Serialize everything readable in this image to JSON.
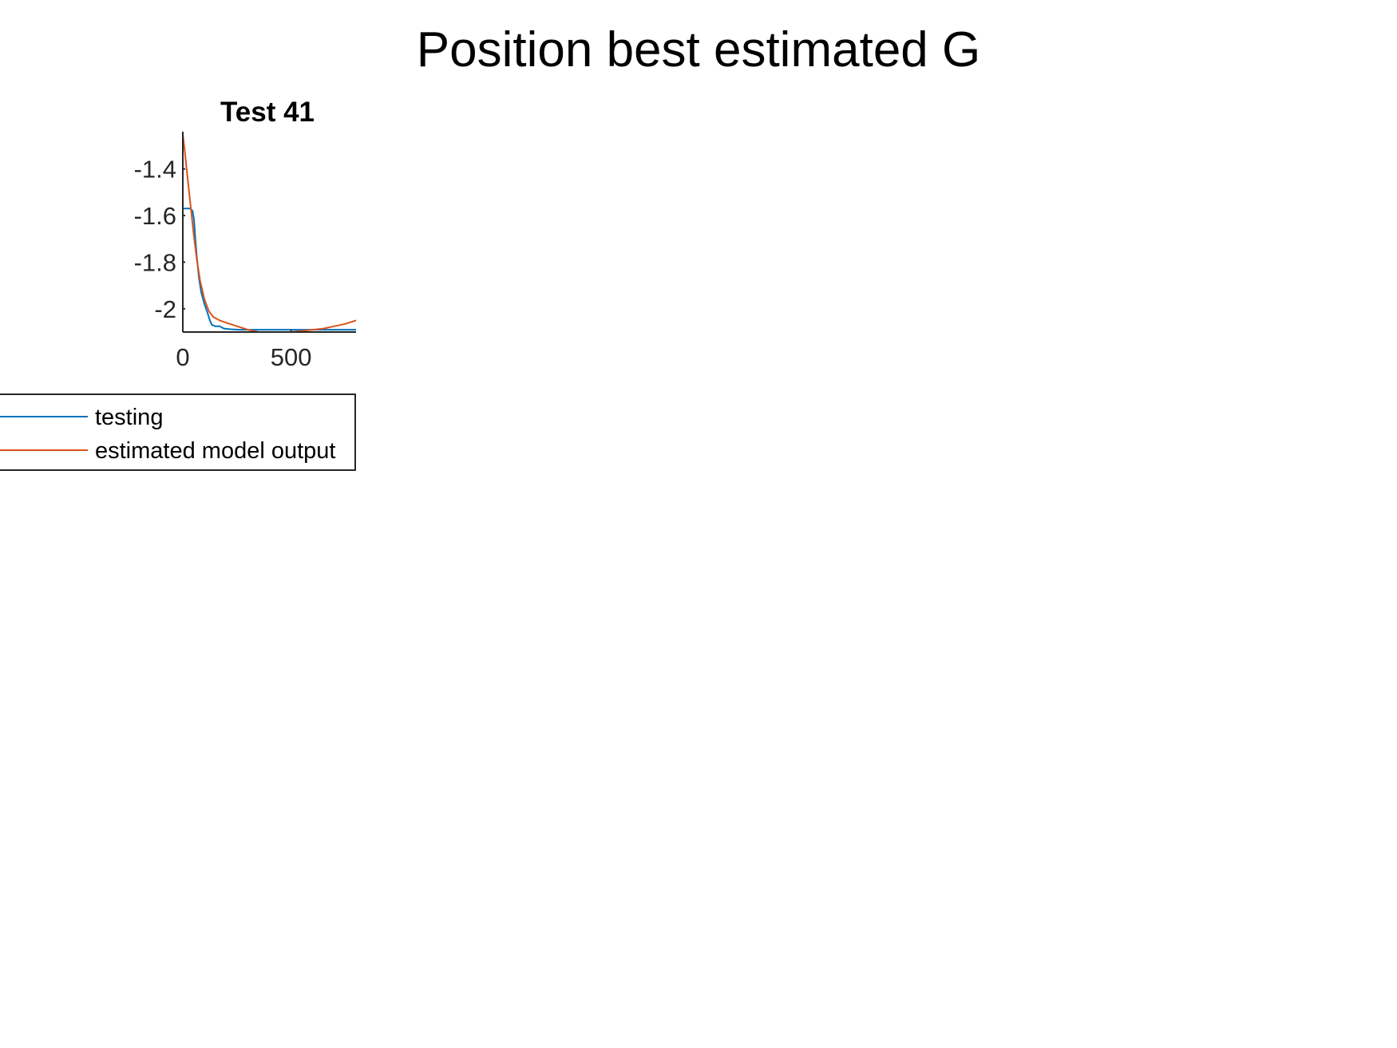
{
  "figure": {
    "suptitle": "Position best estimated G"
  },
  "chart_data": {
    "type": "line",
    "title": "Test 41",
    "xlabel": "",
    "ylabel": "",
    "xlim": [
      0,
      800
    ],
    "ylim": [
      -2.1,
      -1.24
    ],
    "grid": false,
    "legend_position": "below-left",
    "x_ticks": [
      {
        "value": 0,
        "label": "0"
      },
      {
        "value": 500,
        "label": "500"
      }
    ],
    "y_ticks": [
      {
        "value": -1.4,
        "label": "-1.4"
      },
      {
        "value": -1.6,
        "label": "-1.6"
      },
      {
        "value": -1.8,
        "label": "-1.8"
      },
      {
        "value": -2.0,
        "label": "-2"
      }
    ],
    "series": [
      {
        "name": "testing",
        "color": "#0072BD",
        "x": [
          0,
          20,
          35,
          45,
          52,
          58,
          65,
          75,
          85,
          100,
          115,
          125,
          135,
          150,
          170,
          190,
          220,
          260,
          300,
          400,
          500,
          600,
          700,
          800
        ],
        "y": [
          -1.57,
          -1.57,
          -1.57,
          -1.58,
          -1.62,
          -1.7,
          -1.78,
          -1.87,
          -1.93,
          -1.98,
          -2.02,
          -2.05,
          -2.07,
          -2.075,
          -2.075,
          -2.085,
          -2.088,
          -2.09,
          -2.09,
          -2.09,
          -2.09,
          -2.09,
          -2.09,
          -2.09
        ]
      },
      {
        "name": "estimated model output",
        "color": "#D95319",
        "x": [
          0,
          10,
          20,
          35,
          50,
          65,
          80,
          100,
          120,
          140,
          170,
          200,
          250,
          300,
          350,
          400,
          450,
          500,
          550,
          600,
          650,
          700,
          750,
          800
        ],
        "y": [
          -1.25,
          -1.33,
          -1.42,
          -1.55,
          -1.68,
          -1.79,
          -1.88,
          -1.96,
          -2.01,
          -2.035,
          -2.05,
          -2.06,
          -2.075,
          -2.09,
          -2.1,
          -2.1,
          -2.105,
          -2.1,
          -2.095,
          -2.09,
          -2.085,
          -2.075,
          -2.065,
          -2.05
        ]
      }
    ]
  }
}
